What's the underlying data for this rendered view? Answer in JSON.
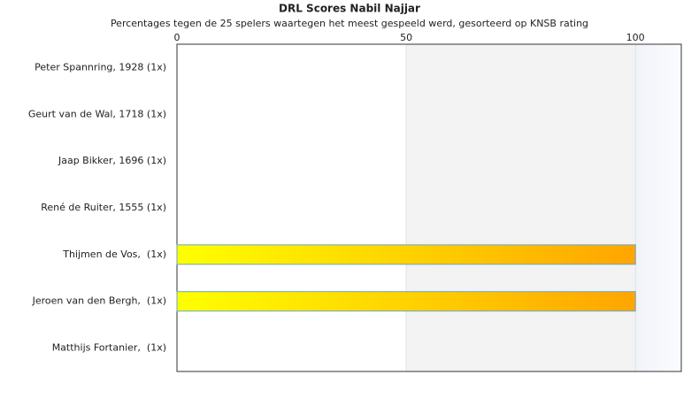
{
  "chart_data": {
    "type": "barh",
    "title": "DRL Scores Nabil Najjar",
    "subtitle": "Percentages tegen de 25 spelers waartegen het meest gespeeld werd, gesorteerd op KNSB rating",
    "categories": [
      "Peter Spannring, 1928 (1x)",
      "Geurt van de Wal, 1718 (1x)",
      "Jaap Bikker, 1696 (1x)",
      "René de Ruiter, 1555 (1x)",
      "Thijmen de Vos,  (1x)",
      "Jeroen van den Bergh,  (1x)",
      "Matthijs Fortanier,  (1x)"
    ],
    "values": [
      0,
      0,
      0,
      0,
      100,
      100,
      0
    ],
    "xlim": [
      0,
      110
    ],
    "xticks": [
      0,
      50,
      100
    ],
    "color": [
      "#ffff00",
      "#ffa500"
    ]
  }
}
